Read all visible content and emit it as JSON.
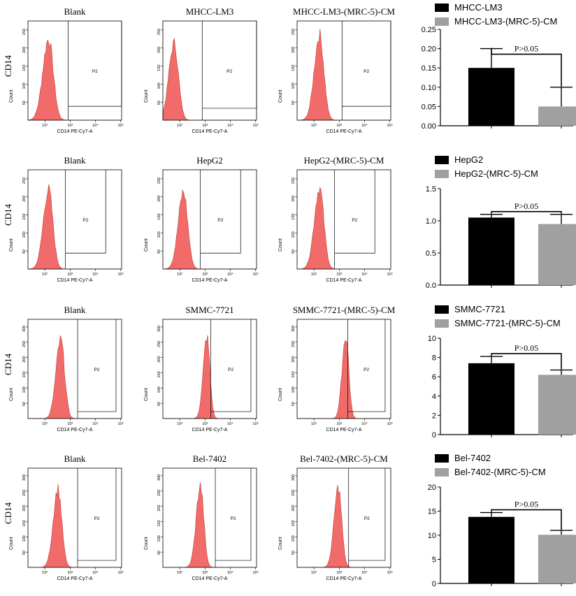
{
  "figure": {
    "y_axis_label": "CD14",
    "flow_axis": {
      "x_label": "CD14 PE-Cy7-A",
      "y_label": "Count",
      "x_ticks": [
        "10²",
        "10³",
        "10⁴",
        "10⁵"
      ],
      "gate_label": "P2"
    },
    "colors": {
      "histogram_fill": "#f26b6b",
      "histogram_line": "#c0392b",
      "control_bar": "#000000",
      "cm_bar": "#a0a0a0"
    },
    "rows": [
      {
        "panel_titles": [
          "Blank",
          "MHCC-LM3",
          "MHCC-LM3-(MRC-5)-CM"
        ],
        "flow_y_ticks": [
          [
            "50",
            "100",
            "150",
            "200",
            "250"
          ],
          [
            "50",
            "100",
            "150",
            "200",
            "250"
          ],
          [
            "50",
            "100",
            "150",
            "200",
            "250"
          ]
        ],
        "legend": [
          "MHCC-LM3",
          "MHCC-LM3-(MRC-5)-CM"
        ]
      },
      {
        "panel_titles": [
          "Blank",
          "HepG2",
          "HepG2-(MRC-5)-CM"
        ],
        "flow_y_ticks": [
          [
            "50",
            "100",
            "150",
            "200",
            "250"
          ],
          [
            "50",
            "100",
            "150",
            "200",
            "250"
          ],
          [
            "50",
            "100",
            "150",
            "200",
            "250"
          ]
        ],
        "legend": [
          "HepG2",
          "HepG2-(MRC-5)-CM"
        ]
      },
      {
        "panel_titles": [
          "Blank",
          "SMMC-7721",
          "SMMC-7721-(MRC-5)-CM"
        ],
        "flow_y_ticks": [
          [
            "50",
            "100",
            "150",
            "200",
            "250",
            "300"
          ],
          [
            "50",
            "100",
            "150",
            "200",
            "250",
            "300"
          ],
          [
            "50",
            "100",
            "150",
            "200",
            "250",
            "300"
          ]
        ],
        "legend": [
          "SMMC-7721",
          "SMMC-7721-(MRC-5)-CM"
        ]
      },
      {
        "panel_titles": [
          "Blank",
          "Bel-7402",
          "Bel-7402-(MRC-5)-CM"
        ],
        "flow_y_ticks": [
          [
            "50",
            "100",
            "150",
            "200",
            "250",
            "300"
          ],
          [
            "50",
            "100",
            "150",
            "200",
            "250",
            "300"
          ],
          [
            "50",
            "100",
            "150",
            "200",
            "250",
            "300"
          ]
        ],
        "legend": [
          "Bel-7402",
          "Bel-7402-(MRC-5)-CM"
        ]
      }
    ]
  },
  "chart_data": [
    {
      "type": "bar",
      "categories": [
        "MHCC-LM3",
        "MHCC-LM3-(MRC-5)-CM"
      ],
      "values": [
        0.15,
        0.05
      ],
      "errors": [
        0.05,
        0.05
      ],
      "ylim": [
        0,
        0.25
      ],
      "yticks": [
        "0.00",
        "0.05",
        "0.10",
        "0.15",
        "0.20",
        "0.25"
      ],
      "ytick_values": [
        0,
        0.05,
        0.1,
        0.15,
        0.2,
        0.25
      ],
      "annotation": "P>0.05"
    },
    {
      "type": "bar",
      "categories": [
        "HepG2",
        "HepG2-(MRC-5)-CM"
      ],
      "values": [
        1.05,
        0.95
      ],
      "errors": [
        0.05,
        0.15
      ],
      "ylim": [
        0,
        1.5
      ],
      "yticks": [
        "0.0",
        "0.5",
        "1.0",
        "1.5"
      ],
      "ytick_values": [
        0,
        0.5,
        1.0,
        1.5
      ],
      "annotation": "P>0.05"
    },
    {
      "type": "bar",
      "categories": [
        "SMMC-7721",
        "SMMC-7721-(MRC-5)-CM"
      ],
      "values": [
        7.4,
        6.2
      ],
      "errors": [
        0.7,
        0.5
      ],
      "ylim": [
        0,
        10
      ],
      "yticks": [
        "0",
        "2",
        "4",
        "6",
        "8",
        "10"
      ],
      "ytick_values": [
        0,
        2,
        4,
        6,
        8,
        10
      ],
      "annotation": "P>0.05"
    },
    {
      "type": "bar",
      "categories": [
        "Bel-7402",
        "Bel-7402-(MRC-5)-CM"
      ],
      "values": [
        13.8,
        10.1
      ],
      "errors": [
        0.9,
        0.9
      ],
      "ylim": [
        0,
        20
      ],
      "yticks": [
        "0",
        "5",
        "10",
        "15",
        "20"
      ],
      "ytick_values": [
        0,
        5,
        10,
        15,
        20
      ],
      "annotation": "P>0.05"
    }
  ]
}
